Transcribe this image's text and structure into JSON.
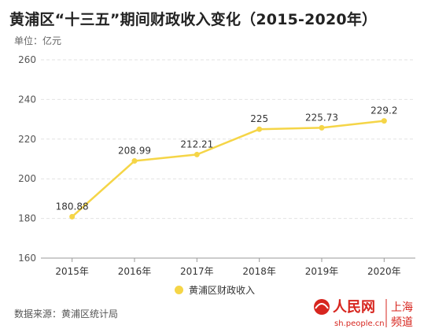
{
  "header": {
    "title": "黄浦区“十三五”期间财政收入变化（2015-2020年）",
    "unit": "单位：亿元"
  },
  "chart_data": {
    "type": "line",
    "categories": [
      "2015年",
      "2016年",
      "2017年",
      "2018年",
      "2019年",
      "2020年"
    ],
    "series": [
      {
        "name": "黄浦区财政收入",
        "values": [
          180.88,
          208.99,
          212.21,
          225,
          225.73,
          229.2
        ],
        "labels": [
          "180.88",
          "208.99",
          "212.21",
          "225",
          "225.73",
          "229.2"
        ]
      }
    ],
    "ylim": [
      160,
      260
    ],
    "yticks": [
      160,
      180,
      200,
      220,
      240,
      260
    ],
    "grid": true,
    "legend_position": "bottom",
    "color": "#f5d547"
  },
  "footer": {
    "source": "数据来源：黄浦区统计局",
    "logo_text": "人民网",
    "logo_sub": "上海",
    "logo_sub2": "频道",
    "logo_url": "sh.people.cn"
  }
}
